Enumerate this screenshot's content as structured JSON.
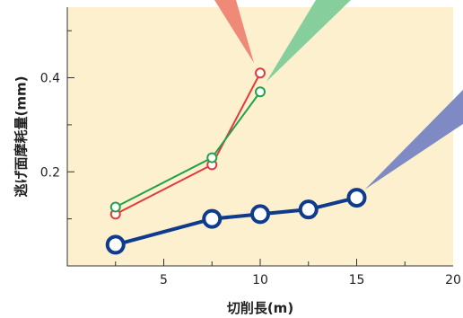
{
  "chart_data": {
    "type": "line",
    "xlabel": "切削長(m)",
    "ylabel": "逃げ面摩耗量(mm)",
    "xlim": [
      0,
      20
    ],
    "ylim": [
      0,
      0.55
    ],
    "x_ticks": [
      5,
      10,
      15,
      20
    ],
    "y_ticks": [
      0.2,
      0.4
    ],
    "grid": false,
    "plot_background": "#fcf0cf",
    "series": [
      {
        "color": "#e23a3a",
        "marker": "open-circle",
        "x": [
          2.5,
          7.5,
          10
        ],
        "y": [
          0.11,
          0.215,
          0.41
        ]
      },
      {
        "color": "#22a24a",
        "marker": "open-circle",
        "x": [
          2.5,
          7.5,
          10
        ],
        "y": [
          0.125,
          0.23,
          0.37
        ]
      },
      {
        "color": "#0e3b8c",
        "marker": "open-circle",
        "x": [
          2.5,
          7.5,
          10,
          12.5,
          15
        ],
        "y": [
          0.045,
          0.1,
          0.11,
          0.12,
          0.145
        ]
      }
    ],
    "callouts": [
      {
        "color": "#f08a78",
        "series_index": 0
      },
      {
        "color": "#86cf9c",
        "series_index": 1
      },
      {
        "color": "#7f89c3",
        "series_index": 2
      }
    ]
  }
}
